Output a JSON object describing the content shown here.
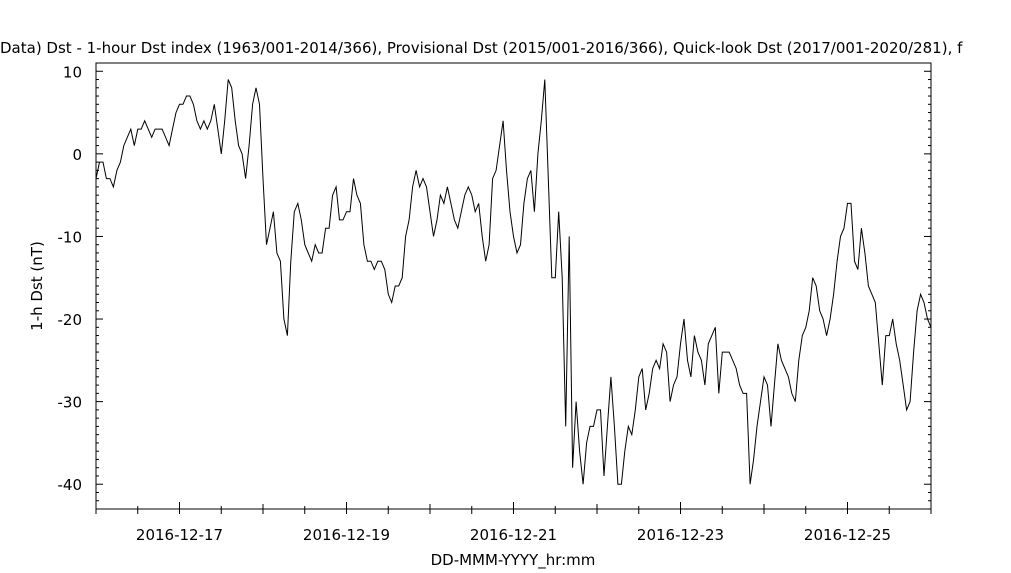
{
  "chart_data": {
    "type": "line",
    "title": "Data)  Dst - 1-hour Dst index (1963/001-2014/366), Provisional Dst (2015/001-2016/366), Quick-look Dst (2017/001-2020/281), f",
    "xlabel": "DD-MMM-YYYY_hr:mm",
    "ylabel": "1-h Dst (nT)",
    "x_unit": "hours from 2016-12-16 00:00",
    "xlim": [
      0,
      240
    ],
    "ylim": [
      -43,
      11
    ],
    "x_ticks": [
      {
        "x": 24,
        "label": "2016-12-17"
      },
      {
        "x": 72,
        "label": "2016-12-19"
      },
      {
        "x": 120,
        "label": "2016-12-21"
      },
      {
        "x": 168,
        "label": "2016-12-23"
      },
      {
        "x": 216,
        "label": "2016-12-25"
      }
    ],
    "y_ticks": [
      {
        "y": 10,
        "label": "10"
      },
      {
        "y": 0,
        "label": "0"
      },
      {
        "y": -10,
        "label": "-10"
      },
      {
        "y": -20,
        "label": "-20"
      },
      {
        "y": -30,
        "label": "-30"
      },
      {
        "y": -40,
        "label": "-40"
      }
    ],
    "grid": false,
    "series": [
      {
        "name": "",
        "color": "#000000",
        "values": [
          -3,
          -1,
          -1,
          -3,
          -3,
          -4,
          -2,
          -1,
          1,
          2,
          3,
          1,
          3,
          3,
          4,
          3,
          2,
          3,
          3,
          3,
          2,
          1,
          3,
          5,
          6,
          6,
          7,
          7,
          6,
          4,
          3,
          4,
          3,
          4,
          6,
          3,
          0,
          4,
          9,
          8,
          4,
          1,
          0,
          -3,
          1,
          6,
          8,
          6,
          -3,
          -11,
          -9,
          -7,
          -12,
          -13,
          -20,
          -22,
          -13,
          -7,
          -6,
          -8,
          -11,
          -12,
          -13,
          -11,
          -12,
          -12,
          -9,
          -9,
          -5,
          -4,
          -8,
          -8,
          -7,
          -7,
          -3,
          -5,
          -6,
          -11,
          -13,
          -13,
          -14,
          -13,
          -13,
          -14,
          -17,
          -18,
          -16,
          -16,
          -15,
          -10,
          -8,
          -4,
          -2,
          -4,
          -3,
          -4,
          -7,
          -10,
          -8,
          -5,
          -6,
          -4,
          -6,
          -8,
          -9,
          -7,
          -5,
          -4,
          -5,
          -7,
          -6,
          -10,
          -13,
          -11,
          -3,
          -2,
          1,
          4,
          -2,
          -7,
          -10,
          -12,
          -11,
          -6,
          -3,
          -2,
          -7,
          0,
          4,
          9,
          -3,
          -15,
          -15,
          -7,
          -15,
          -33,
          -10,
          -38,
          -30,
          -36,
          -40,
          -35,
          -33,
          -33,
          -31,
          -31,
          -39,
          -33,
          -27,
          -33,
          -40,
          -40,
          -36,
          -33,
          -34,
          -31,
          -27,
          -26,
          -31,
          -29,
          -26,
          -25,
          -26,
          -23,
          -24,
          -30,
          -28,
          -27,
          -23,
          -20,
          -25,
          -27,
          -22,
          -24,
          -25,
          -28,
          -23,
          -22,
          -21,
          -29,
          -24,
          -24,
          -24,
          -25,
          -26,
          -28,
          -29,
          -29,
          -40,
          -37,
          -33,
          -30,
          -27,
          -28,
          -33,
          -28,
          -23,
          -25,
          -26,
          -27,
          -29,
          -30,
          -25,
          -22,
          -21,
          -19,
          -15,
          -16,
          -19,
          -20,
          -22,
          -20,
          -17,
          -13,
          -10,
          -9,
          -6,
          -6,
          -13,
          -14,
          -9,
          -12,
          -16,
          -17,
          -18,
          -23,
          -28,
          -22,
          -22,
          -20,
          -23,
          -25,
          -28,
          -31,
          -30,
          -24,
          -19,
          -17,
          -18,
          -20,
          -21
        ]
      }
    ]
  }
}
